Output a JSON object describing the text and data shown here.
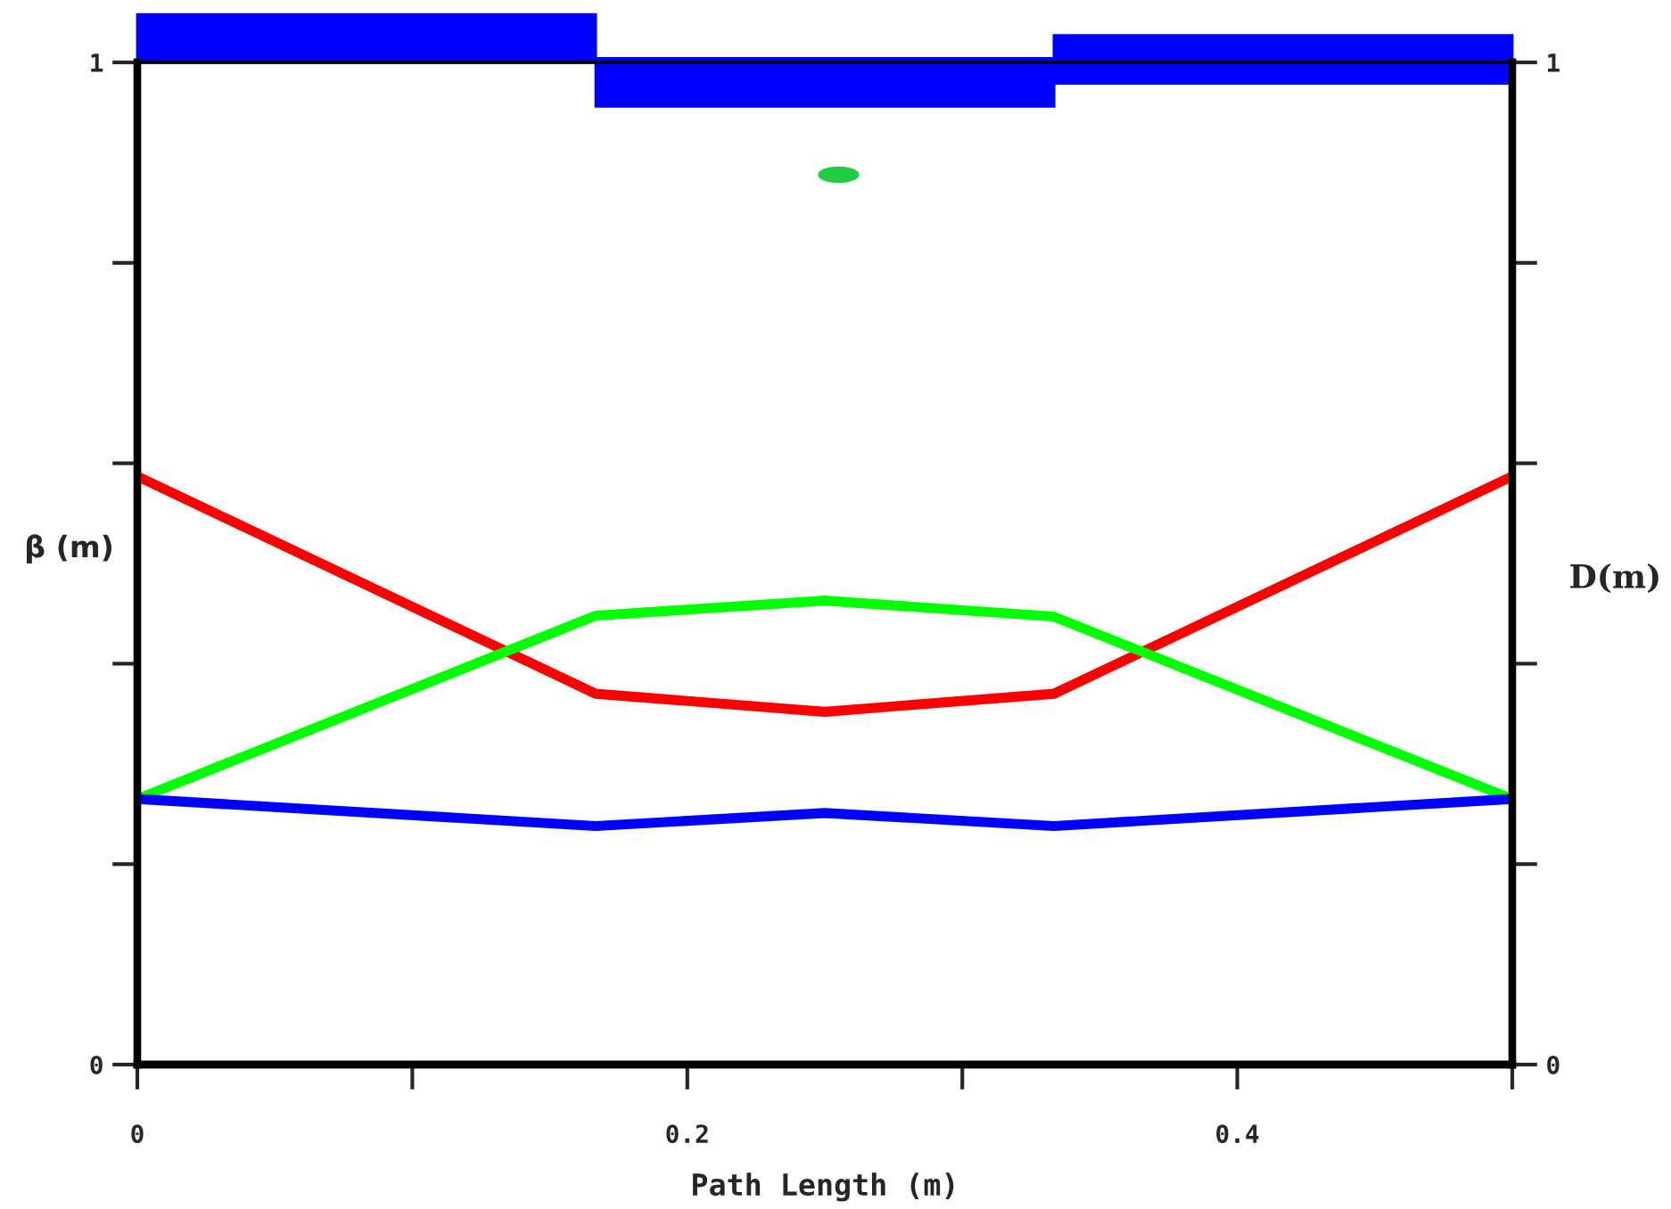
{
  "chart_data": {
    "type": "line",
    "xlabel": "Path Length (m)",
    "ylabel": "β (m)",
    "y2label": "D(m)",
    "xlim": [
      0,
      0.5
    ],
    "xticks": [
      0,
      {
        "value": 0.1,
        "label": null
      },
      0.2,
      {
        "value": 0.3,
        "label": null
      },
      0.4,
      {
        "value": 0.5,
        "label": null
      }
    ],
    "ylim": [
      0,
      1
    ],
    "yticks": [
      0,
      {
        "value": 0.2,
        "label": null
      },
      {
        "value": 0.4,
        "label": null
      },
      {
        "value": 0.6,
        "label": null
      },
      {
        "value": 0.8,
        "label": null
      },
      1
    ],
    "y2lim": [
      0,
      1
    ],
    "y2ticks": [
      0,
      {
        "value": 0.2,
        "label": null
      },
      {
        "value": 0.4,
        "label": null
      },
      {
        "value": 0.6,
        "label": null
      },
      {
        "value": 0.8,
        "label": null
      },
      1
    ],
    "x": [
      0,
      0.1667,
      0.25,
      0.3333,
      0.5
    ],
    "series": [
      {
        "color": "#ff0000",
        "values": [
          0.587,
          0.37,
          0.352,
          0.37,
          0.587
        ]
      },
      {
        "color": "#00ff00",
        "values": [
          0.265,
          0.448,
          0.463,
          0.447,
          0.265
        ]
      },
      {
        "color": "#0000ff",
        "values": [
          0.265,
          0.238,
          0.251,
          0.238,
          0.265
        ]
      }
    ],
    "grid": false,
    "legend": false,
    "marker": "none",
    "line_style": "solid"
  }
}
